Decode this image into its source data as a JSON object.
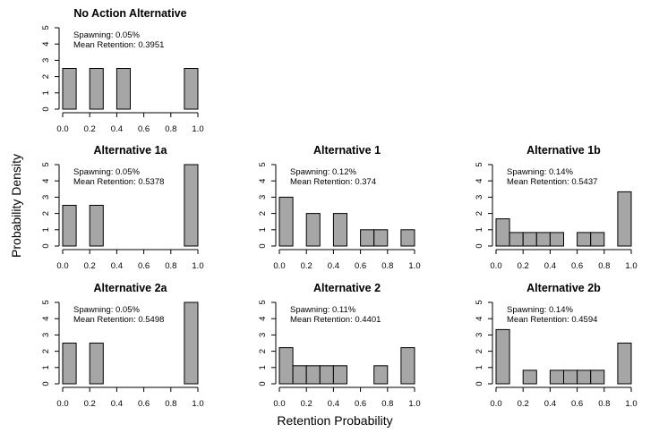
{
  "figure": {
    "xlabel": "Retention Probability",
    "ylabel": "Probability Density"
  },
  "chart_data": [
    {
      "type": "bar",
      "title": "No Action Alternative",
      "annotations": [
        "Spawning: 0.05%",
        "Mean Retention: 0.3951"
      ],
      "bin_width": 0.1,
      "bin_starts": [
        0.0,
        0.2,
        0.4,
        0.9
      ],
      "values": [
        2.5,
        2.5,
        2.5,
        2.5
      ],
      "xlim": [
        0,
        1
      ],
      "ylim": [
        0,
        5
      ],
      "xticks": [
        "0.0",
        "0.2",
        "0.4",
        "0.6",
        "0.8",
        "1.0"
      ],
      "yticks": [
        "0",
        "1",
        "2",
        "3",
        "4",
        "5"
      ]
    },
    {
      "type": "bar",
      "title": "Alternative 1a",
      "annotations": [
        "Spawning: 0.05%",
        "Mean Retention: 0.5378"
      ],
      "bin_width": 0.1,
      "bin_starts": [
        0.0,
        0.2,
        0.9
      ],
      "values": [
        2.5,
        2.5,
        5.0
      ],
      "xlim": [
        0,
        1
      ],
      "ylim": [
        0,
        5
      ],
      "xticks": [
        "0.0",
        "0.2",
        "0.4",
        "0.6",
        "0.8",
        "1.0"
      ],
      "yticks": [
        "0",
        "1",
        "2",
        "3",
        "4",
        "5"
      ]
    },
    {
      "type": "bar",
      "title": "Alternative 1",
      "annotations": [
        "Spawning: 0.12%",
        "Mean Retention: 0.374"
      ],
      "bin_width": 0.1,
      "bin_starts": [
        0.0,
        0.2,
        0.4,
        0.6,
        0.7,
        0.9
      ],
      "values": [
        3.0,
        2.0,
        2.0,
        1.0,
        1.0,
        1.0
      ],
      "xlim": [
        0,
        1
      ],
      "ylim": [
        0,
        5
      ],
      "xticks": [
        "0.0",
        "0.2",
        "0.4",
        "0.6",
        "0.8",
        "1.0"
      ],
      "yticks": [
        "0",
        "1",
        "2",
        "3",
        "4",
        "5"
      ]
    },
    {
      "type": "bar",
      "title": "Alternative 1b",
      "annotations": [
        "Spawning: 0.14%",
        "Mean Retention: 0.5437"
      ],
      "bin_width": 0.1,
      "bin_starts": [
        0.0,
        0.1,
        0.2,
        0.3,
        0.4,
        0.6,
        0.7,
        0.9
      ],
      "values": [
        1.67,
        0.83,
        0.83,
        0.83,
        0.83,
        0.83,
        0.83,
        3.33
      ],
      "xlim": [
        0,
        1
      ],
      "ylim": [
        0,
        5
      ],
      "xticks": [
        "0.0",
        "0.2",
        "0.4",
        "0.6",
        "0.8",
        "1.0"
      ],
      "yticks": [
        "0",
        "1",
        "2",
        "3",
        "4",
        "5"
      ]
    },
    {
      "type": "bar",
      "title": "Alternative 2a",
      "annotations": [
        "Spawning: 0.05%",
        "Mean Retention: 0.5498"
      ],
      "bin_width": 0.1,
      "bin_starts": [
        0.0,
        0.2,
        0.9
      ],
      "values": [
        2.5,
        2.5,
        5.0
      ],
      "xlim": [
        0,
        1
      ],
      "ylim": [
        0,
        5
      ],
      "xticks": [
        "0.0",
        "0.2",
        "0.4",
        "0.6",
        "0.8",
        "1.0"
      ],
      "yticks": [
        "0",
        "1",
        "2",
        "3",
        "4",
        "5"
      ]
    },
    {
      "type": "bar",
      "title": "Alternative 2",
      "annotations": [
        "Spawning: 0.11%",
        "Mean Retention: 0.4401"
      ],
      "bin_width": 0.1,
      "bin_starts": [
        0.0,
        0.1,
        0.2,
        0.3,
        0.4,
        0.7,
        0.9
      ],
      "values": [
        2.22,
        1.11,
        1.11,
        1.11,
        1.11,
        1.11,
        2.22
      ],
      "xlim": [
        0,
        1
      ],
      "ylim": [
        0,
        5
      ],
      "xticks": [
        "0.0",
        "0.2",
        "0.4",
        "0.6",
        "0.8",
        "1.0"
      ],
      "yticks": [
        "0",
        "1",
        "2",
        "3",
        "4",
        "5"
      ]
    },
    {
      "type": "bar",
      "title": "Alternative 2b",
      "annotations": [
        "Spawning: 0.14%",
        "Mean Retention: 0.4594"
      ],
      "bin_width": 0.1,
      "bin_starts": [
        0.0,
        0.2,
        0.4,
        0.5,
        0.6,
        0.7,
        0.9
      ],
      "values": [
        3.33,
        0.83,
        0.83,
        0.83,
        0.83,
        0.83,
        2.5
      ],
      "xlim": [
        0,
        1
      ],
      "ylim": [
        0,
        5
      ],
      "xticks": [
        "0.0",
        "0.2",
        "0.4",
        "0.6",
        "0.8",
        "1.0"
      ],
      "yticks": [
        "0",
        "1",
        "2",
        "3",
        "4",
        "5"
      ]
    }
  ]
}
